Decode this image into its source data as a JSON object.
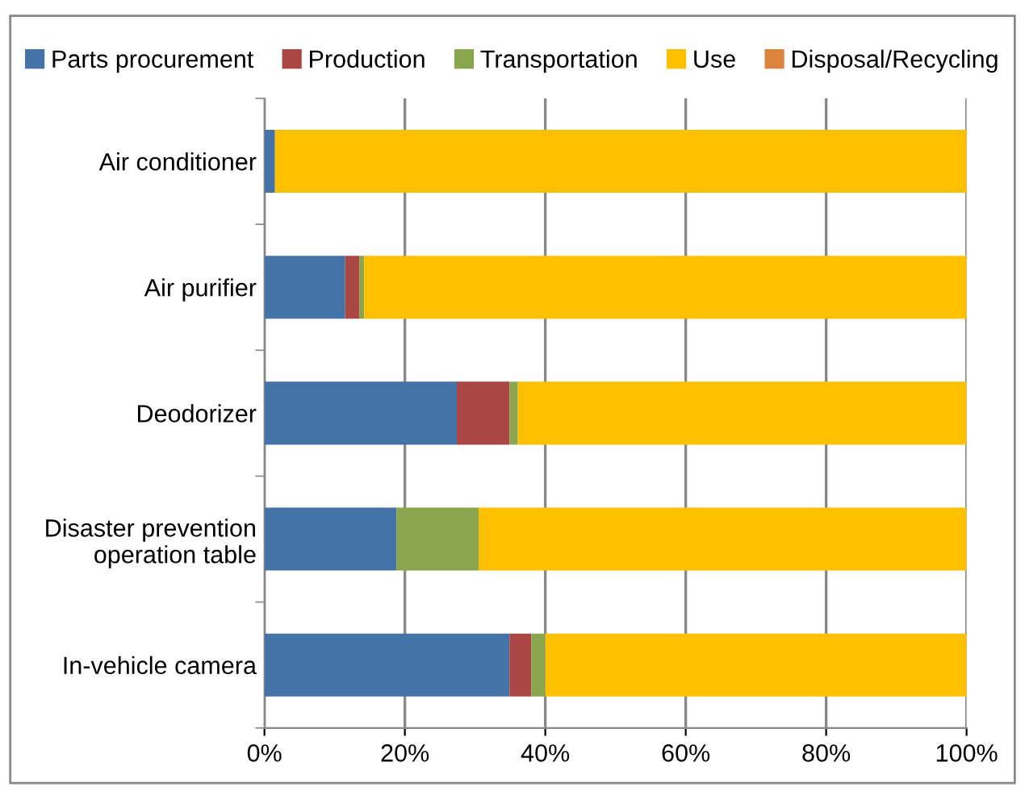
{
  "chart_data": {
    "type": "bar",
    "orientation": "horizontal",
    "stacked": true,
    "categories": [
      "Air conditioner",
      "Air purifier",
      "Deodorizer",
      "Disaster prevention\noperation table",
      "In-vehicle camera"
    ],
    "series": [
      {
        "name": "Parts procurement",
        "color": "#4572a7",
        "values": [
          1.5,
          11.5,
          27.4,
          18.8,
          34.9
        ]
      },
      {
        "name": "Production",
        "color": "#aa4643",
        "values": [
          0,
          2.0,
          7.5,
          0,
          3.1
        ]
      },
      {
        "name": "Transportation",
        "color": "#89a54e",
        "values": [
          0,
          0.7,
          1.2,
          11.7,
          2.0
        ]
      },
      {
        "name": "Use",
        "color": "#ffc000",
        "values": [
          98.5,
          85.8,
          63.9,
          69.5,
          60.0
        ]
      },
      {
        "name": "Disposal/Recycling",
        "color": "#db843d",
        "values": [
          0,
          0,
          0,
          0,
          0
        ]
      }
    ],
    "xlim": [
      0,
      100
    ],
    "xticks": [
      {
        "value": 0,
        "label": "0%"
      },
      {
        "value": 20,
        "label": "20%"
      },
      {
        "value": 40,
        "label": "40%"
      },
      {
        "value": 60,
        "label": "60%"
      },
      {
        "value": 80,
        "label": "80%"
      },
      {
        "value": 100,
        "label": "100%"
      }
    ],
    "grid": "x",
    "legend": "top"
  }
}
